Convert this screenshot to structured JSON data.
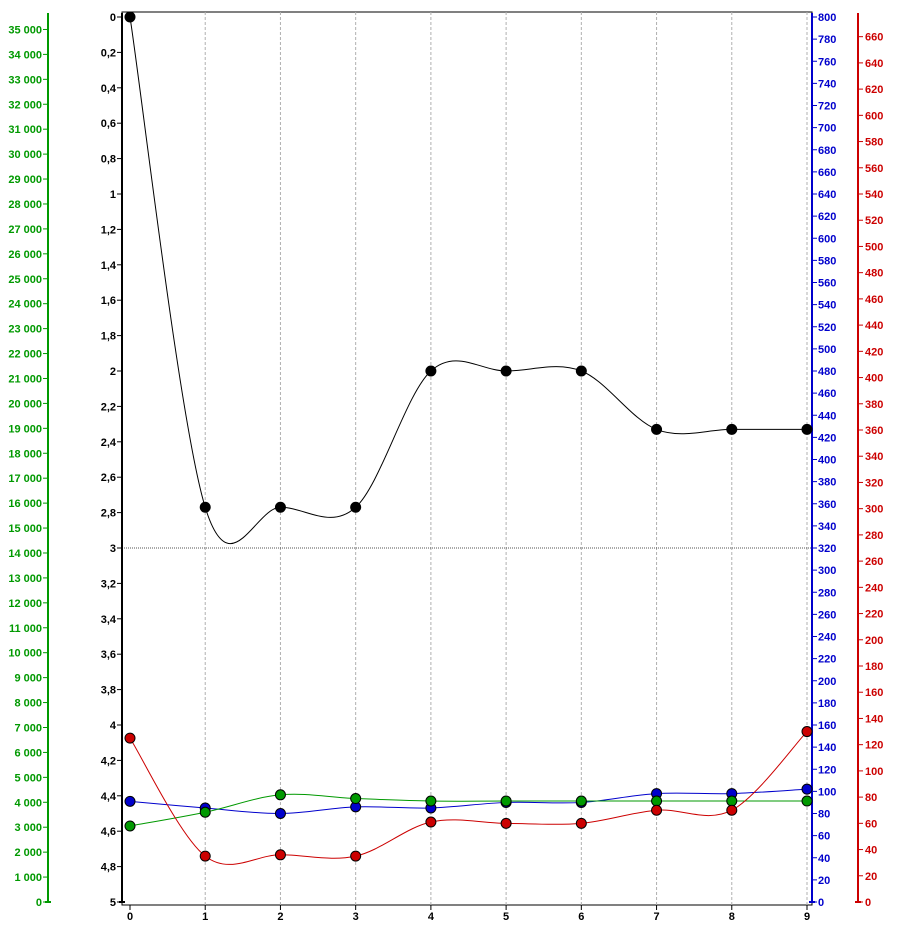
{
  "chart_data": {
    "type": "line",
    "x": [
      0,
      1,
      2,
      3,
      4,
      5,
      6,
      7,
      8,
      9
    ],
    "x_ticks": [
      "0",
      "1",
      "2",
      "3",
      "4",
      "5",
      "6",
      "7",
      "8",
      "9"
    ],
    "grid": "vertical dashed lines at each x tick; horizontal dotted line at inner-axis value 3",
    "axes": {
      "green_left": {
        "color": "#009900",
        "range": [
          0,
          35500
        ],
        "tick_values": [
          0,
          1000,
          2000,
          3000,
          4000,
          5000,
          6000,
          7000,
          8000,
          9000,
          10000,
          11000,
          12000,
          13000,
          14000,
          15000,
          16000,
          17000,
          18000,
          19000,
          20000,
          21000,
          22000,
          23000,
          24000,
          25000,
          26000,
          27000,
          28000,
          29000,
          30000,
          31000,
          32000,
          33000,
          34000,
          35000
        ],
        "tick_labels": [
          "0",
          "1 000",
          "2 000",
          "3 000",
          "4 000",
          "5 000",
          "6 000",
          "7 000",
          "8 000",
          "9 000",
          "10 000",
          "11 000",
          "12 000",
          "13 000",
          "14 000",
          "15 000",
          "16 000",
          "17 000",
          "18 000",
          "19 000",
          "20 000",
          "21 000",
          "22 000",
          "23 000",
          "24 000",
          "25 000",
          "26 000",
          "27 000",
          "28 000",
          "29 000",
          "30 000",
          "31 000",
          "32 000",
          "33 000",
          "34 000",
          "35 000"
        ]
      },
      "black_inner_inverted": {
        "color": "#000000",
        "range": [
          0,
          5
        ],
        "inverted": true,
        "tick_values": [
          0,
          0.2,
          0.4,
          0.6,
          0.8,
          1,
          1.2,
          1.4,
          1.6,
          1.8,
          2,
          2.2,
          2.4,
          2.6,
          2.8,
          3,
          3.2,
          3.4,
          3.6,
          3.8,
          4,
          4.2,
          4.4,
          4.6,
          4.8,
          5
        ],
        "tick_labels": [
          "0",
          "0,2",
          "0,4",
          "0,6",
          "0,8",
          "1",
          "1,2",
          "1,4",
          "1,6",
          "1,8",
          "2",
          "2,2",
          "2,4",
          "2,6",
          "2,8",
          "3",
          "3,2",
          "3,4",
          "3,6",
          "3,8",
          "4",
          "4,2",
          "4,4",
          "4,6",
          "4,8",
          "5"
        ]
      },
      "blue_right": {
        "color": "#0000cc",
        "range": [
          0,
          800
        ],
        "tick_values": [
          0,
          20,
          40,
          60,
          80,
          100,
          120,
          140,
          160,
          180,
          200,
          220,
          240,
          260,
          280,
          300,
          320,
          340,
          360,
          380,
          400,
          420,
          440,
          460,
          480,
          500,
          520,
          540,
          560,
          580,
          600,
          620,
          640,
          660,
          680,
          700,
          720,
          740,
          760,
          780,
          800
        ],
        "tick_labels": [
          "0",
          "20",
          "40",
          "60",
          "80",
          "100",
          "120",
          "140",
          "160",
          "180",
          "200",
          "220",
          "240",
          "260",
          "280",
          "300",
          "320",
          "340",
          "360",
          "380",
          "400",
          "420",
          "440",
          "460",
          "480",
          "500",
          "520",
          "540",
          "560",
          "580",
          "600",
          "620",
          "640",
          "660",
          "680",
          "700",
          "720",
          "740",
          "760",
          "780",
          "800"
        ]
      },
      "red_far_right": {
        "color": "#cc0000",
        "range": [
          0,
          675
        ],
        "tick_values": [
          0,
          20,
          40,
          60,
          80,
          100,
          120,
          140,
          160,
          180,
          200,
          220,
          240,
          260,
          280,
          300,
          320,
          340,
          360,
          380,
          400,
          420,
          440,
          460,
          480,
          500,
          520,
          540,
          560,
          580,
          600,
          620,
          640,
          660
        ],
        "tick_labels": [
          "0",
          "20",
          "40",
          "60",
          "80",
          "100",
          "120",
          "140",
          "160",
          "180",
          "200",
          "220",
          "240",
          "260",
          "280",
          "300",
          "320",
          "340",
          "360",
          "380",
          "400",
          "420",
          "440",
          "460",
          "480",
          "500",
          "520",
          "540",
          "560",
          "580",
          "600",
          "620",
          "640",
          "660"
        ]
      }
    },
    "series": [
      {
        "axis": "black_inner_inverted",
        "color": "#000000",
        "values": [
          0,
          2.77,
          2.77,
          2.77,
          2.0,
          2.0,
          2.0,
          2.33,
          2.33,
          2.33
        ]
      },
      {
        "axis": "blue_right",
        "color": "#0000cc",
        "values": [
          91,
          85,
          80,
          86,
          85,
          90,
          90,
          98,
          98,
          102
        ]
      },
      {
        "axis": "green_left",
        "color": "#009900",
        "values": [
          3050,
          3600,
          4300,
          4150,
          4050,
          4050,
          4050,
          4050,
          4050,
          4050
        ]
      },
      {
        "axis": "red_far_right",
        "color": "#cc0000",
        "values": [
          125,
          35,
          36,
          35,
          61,
          60,
          60,
          70,
          70,
          130
        ]
      }
    ]
  }
}
